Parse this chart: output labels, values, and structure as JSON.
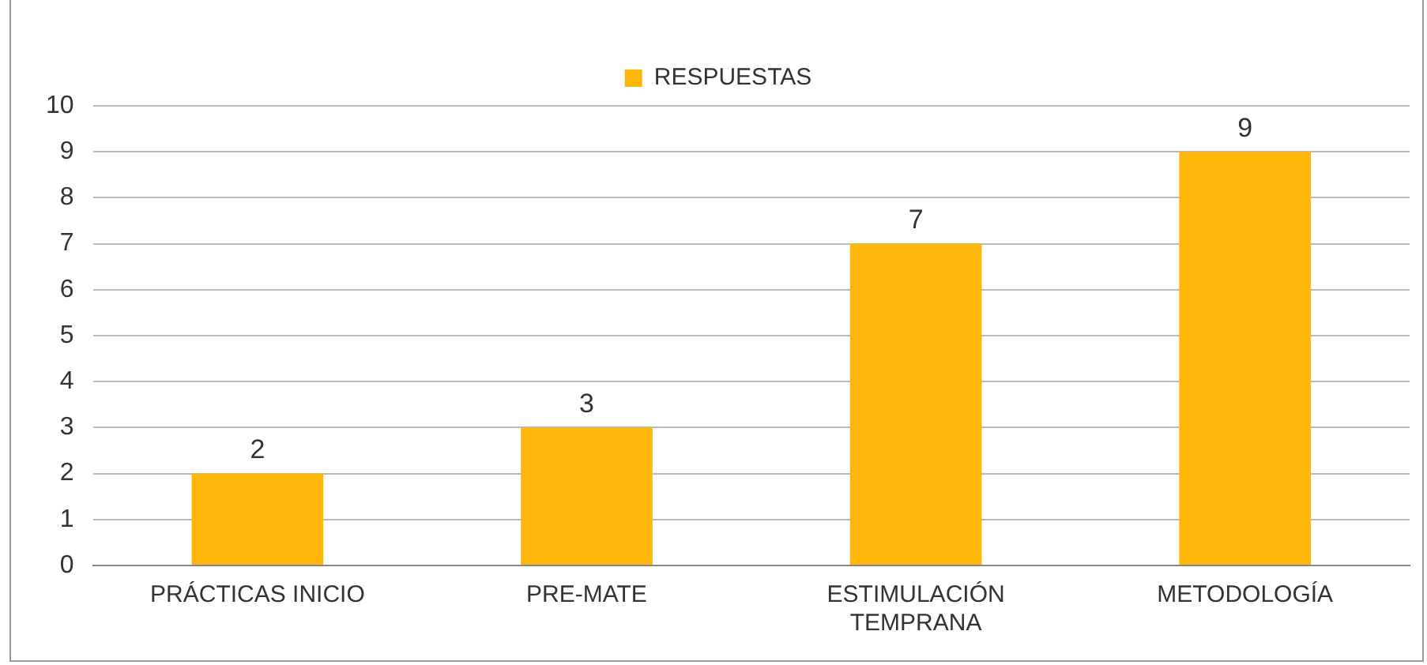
{
  "chart_data": {
    "type": "bar",
    "categories": [
      "PRÁCTICAS INICIO",
      "PRE-MATE",
      "ESTIMULACIÓN TEMPRANA",
      "METODOLOGÍA"
    ],
    "series": [
      {
        "name": "RESPUESTAS",
        "color": "#ffb60a",
        "values": [
          2,
          3,
          7,
          9
        ]
      }
    ],
    "ylim": [
      0,
      10
    ],
    "yticks": [
      0,
      1,
      2,
      3,
      4,
      5,
      6,
      7,
      8,
      9,
      10
    ],
    "grid": "y",
    "legend": "top",
    "data_labels": true
  }
}
